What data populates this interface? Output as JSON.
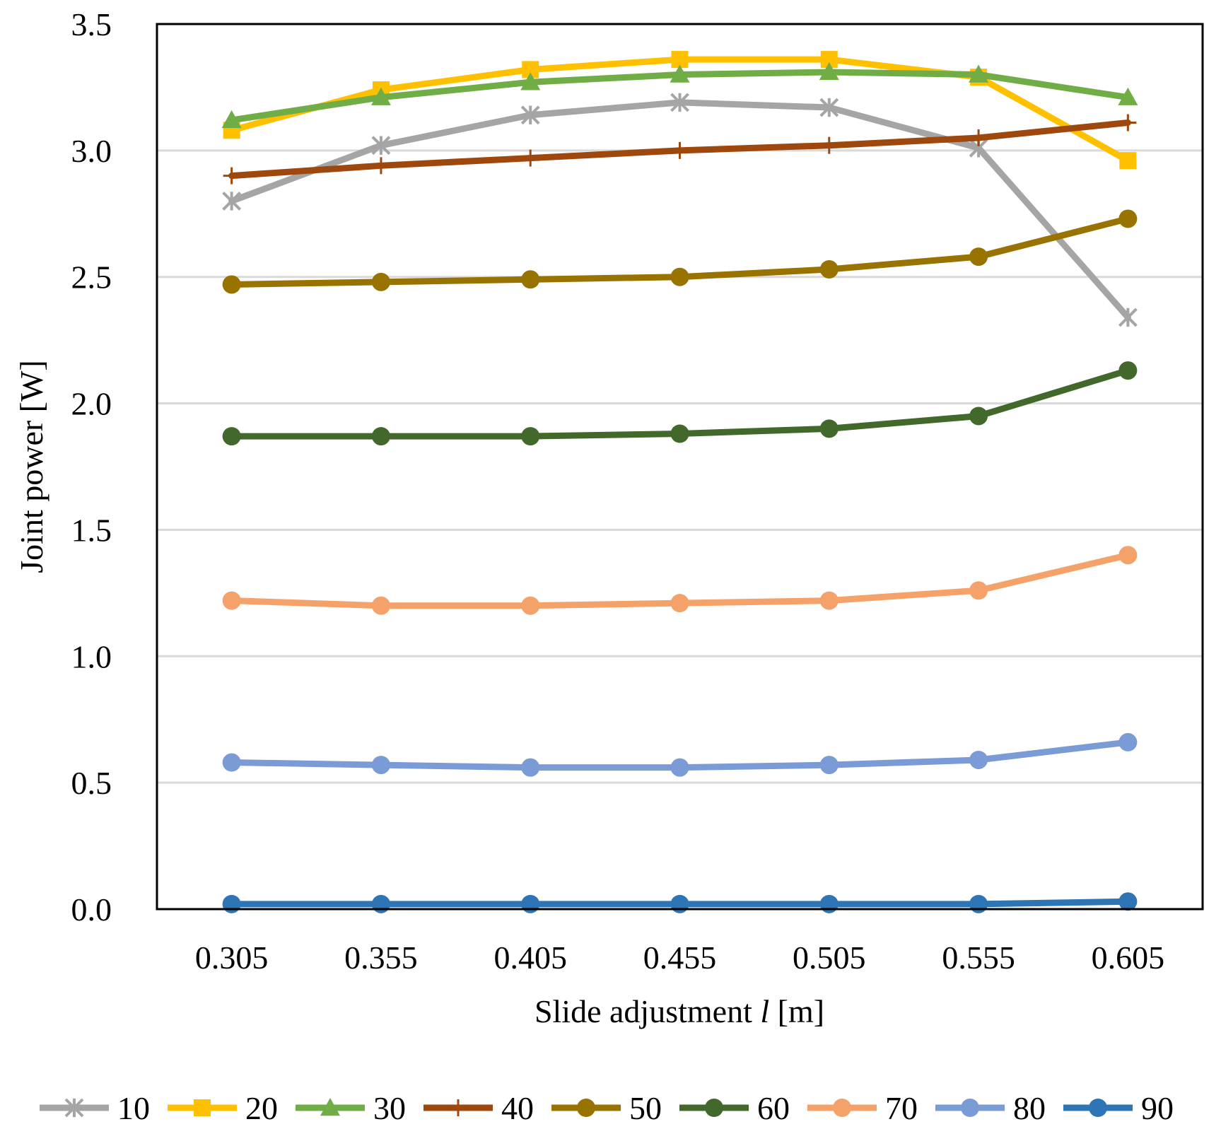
{
  "chart_data": {
    "type": "line",
    "xlabel_main": "Slide adjustment ",
    "xlabel_var": "l",
    "xlabel_unit": " [m]",
    "ylabel": "Joint power [W]",
    "categories": [
      "0.305",
      "0.355",
      "0.405",
      "0.455",
      "0.505",
      "0.555",
      "0.605"
    ],
    "y_ticks": [
      "0.0",
      "0.5",
      "1.0",
      "1.5",
      "2.0",
      "2.5",
      "3.0",
      "3.5"
    ],
    "ylim": [
      0,
      3.5
    ],
    "grid": "horizontal",
    "legend_position": "bottom",
    "series": [
      {
        "name": "10",
        "color": "#A5A5A5",
        "marker": "star",
        "values": [
          2.8,
          3.02,
          3.14,
          3.19,
          3.17,
          3.01,
          2.34
        ]
      },
      {
        "name": "20",
        "color": "#FFC000",
        "marker": "square",
        "values": [
          3.08,
          3.24,
          3.32,
          3.36,
          3.36,
          3.29,
          2.96
        ]
      },
      {
        "name": "30",
        "color": "#70AD47",
        "marker": "triangle",
        "values": [
          3.12,
          3.21,
          3.27,
          3.3,
          3.31,
          3.3,
          3.21
        ]
      },
      {
        "name": "40",
        "color": "#9E480E",
        "marker": "plus",
        "values": [
          2.9,
          2.94,
          2.97,
          3.0,
          3.02,
          3.05,
          3.11
        ]
      },
      {
        "name": "50",
        "color": "#997300",
        "marker": "circle",
        "values": [
          2.47,
          2.48,
          2.49,
          2.5,
          2.53,
          2.58,
          2.73
        ]
      },
      {
        "name": "60",
        "color": "#43682B",
        "marker": "circle",
        "values": [
          1.87,
          1.87,
          1.87,
          1.88,
          1.9,
          1.95,
          2.13
        ]
      },
      {
        "name": "70",
        "color": "#F4A26A",
        "marker": "circle",
        "values": [
          1.22,
          1.2,
          1.2,
          1.21,
          1.22,
          1.26,
          1.4
        ]
      },
      {
        "name": "80",
        "color": "#7A9BD5",
        "marker": "circle",
        "values": [
          0.58,
          0.57,
          0.56,
          0.56,
          0.57,
          0.59,
          0.66
        ]
      },
      {
        "name": "90",
        "color": "#2E75B6",
        "marker": "circle",
        "values": [
          0.02,
          0.02,
          0.02,
          0.02,
          0.02,
          0.02,
          0.03
        ]
      }
    ]
  }
}
